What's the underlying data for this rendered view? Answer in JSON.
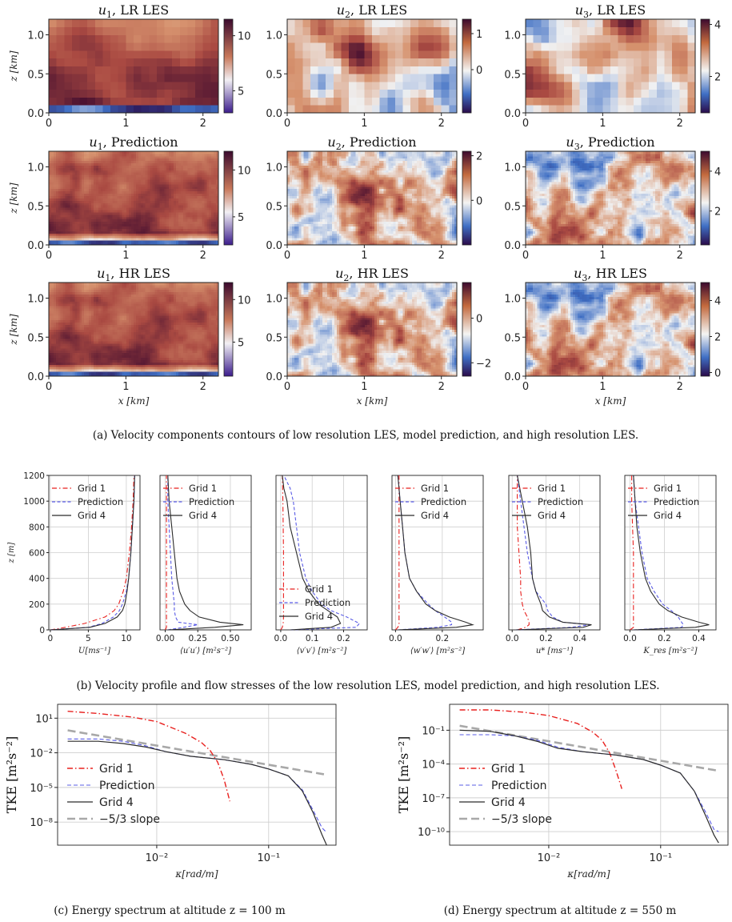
{
  "captions": {
    "a": "(a) Velocity components contours of low resolution LES, model prediction, and high resolution LES.",
    "b": "(b) Velocity profile and flow stresses of the low resolution LES, model prediction, and high resolution LES.",
    "c": "(c) Energy spectrum at altitude z = 100 m",
    "d": "(d) Energy spectrum at altitude z = 550 m"
  },
  "chart_data": [
    {
      "id": "a",
      "type": "heatmap",
      "x_label": "x [km]",
      "z_label": "z [km]",
      "x_ticks": [
        "0",
        "1",
        "2"
      ],
      "z_ticks": [
        "0.0",
        "0.5",
        "1.0"
      ],
      "xlim": [
        0,
        2.2
      ],
      "zlim": [
        0,
        1.2
      ],
      "panels": [
        {
          "title": "u1, LR LES",
          "component": "u1",
          "source": "LR LES",
          "grid": "coarse",
          "colorbar_ticks": [
            "10",
            "5"
          ],
          "colorbar_range": [
            3,
            11.5
          ]
        },
        {
          "title": "u2, LR LES",
          "component": "u2",
          "source": "LR LES",
          "grid": "coarse",
          "colorbar_ticks": [
            "1",
            "0"
          ],
          "colorbar_range": [
            -1.2,
            1.4
          ]
        },
        {
          "title": "u3, LR LES",
          "component": "u3",
          "source": "LR LES",
          "grid": "coarse",
          "colorbar_ticks": [
            "4",
            "2"
          ],
          "colorbar_range": [
            0.6,
            4.2
          ]
        },
        {
          "title": "u1, Prediction",
          "component": "u1",
          "source": "Prediction",
          "grid": "fine",
          "colorbar_ticks": [
            "10",
            "5"
          ],
          "colorbar_range": [
            2,
            12
          ]
        },
        {
          "title": "u2, Prediction",
          "component": "u2",
          "source": "Prediction",
          "grid": "fine",
          "colorbar_ticks": [
            "2",
            "0"
          ],
          "colorbar_range": [
            -2,
            2.2
          ]
        },
        {
          "title": "u3, Prediction",
          "component": "u3",
          "source": "Prediction",
          "grid": "fine",
          "colorbar_ticks": [
            "4",
            "2"
          ],
          "colorbar_range": [
            0.3,
            5
          ]
        },
        {
          "title": "u1, HR LES",
          "component": "u1",
          "source": "HR LES",
          "grid": "fine",
          "colorbar_ticks": [
            "10",
            "5"
          ],
          "colorbar_range": [
            1,
            12
          ]
        },
        {
          "title": "u2, HR LES",
          "component": "u2",
          "source": "HR LES",
          "grid": "fine",
          "colorbar_ticks": [
            "0",
            "−2"
          ],
          "colorbar_range": [
            -2.6,
            1.6
          ]
        },
        {
          "title": "u3, HR LES",
          "component": "u3",
          "source": "HR LES",
          "grid": "fine",
          "colorbar_ticks": [
            "4",
            "2",
            "0"
          ],
          "colorbar_range": [
            -0.2,
            5
          ]
        }
      ]
    },
    {
      "id": "b",
      "type": "line",
      "y_label": "z [m]",
      "y_ticks": [
        0,
        200,
        400,
        600,
        800,
        1000,
        1200
      ],
      "ylim": [
        0,
        1200
      ],
      "series_names": [
        "Grid 1",
        "Prediction",
        "Grid 4"
      ],
      "series_colors": [
        "#e8201e",
        "#5a5ce6",
        "#2b2b2b"
      ],
      "legend_pos": "top-right",
      "panels": [
        {
          "xlabel": "U[ms⁻¹]",
          "xlim": [
            -0.2,
            11.8
          ],
          "x_ticks": [
            0,
            5,
            10
          ],
          "x_tick_labels": [
            "0",
            "5",
            "10"
          ],
          "z": [
            0,
            20,
            50,
            100,
            150,
            200,
            300,
            400,
            600,
            800,
            1000,
            1200
          ],
          "grid1": [
            0,
            2.0,
            4.5,
            7.2,
            8.4,
            9.0,
            9.6,
            10.0,
            10.4,
            10.7,
            10.9,
            11.0
          ],
          "prediction": [
            0,
            5.0,
            6.8,
            8.3,
            9.1,
            9.5,
            10.0,
            10.3,
            10.6,
            10.8,
            11.0,
            11.1
          ],
          "grid4": [
            0,
            5.2,
            7.2,
            8.8,
            9.5,
            9.8,
            10.1,
            10.3,
            10.6,
            10.8,
            11.0,
            11.1
          ]
        },
        {
          "xlabel": "⟨u′u′⟩ [m²s⁻²]",
          "xlim": [
            -0.04,
            0.66
          ],
          "x_ticks": [
            0,
            0.25,
            0.5
          ],
          "x_tick_labels": [
            "0.00",
            "0.25",
            "0.50"
          ],
          "z": [
            0,
            20,
            40,
            60,
            100,
            150,
            200,
            300,
            400,
            600,
            800,
            1000,
            1200
          ],
          "grid1": [
            0.0,
            0.01,
            0.01,
            0.01,
            0.01,
            0.01,
            0.01,
            0.01,
            0.01,
            0.01,
            0.01,
            0.01,
            0.01
          ],
          "prediction": [
            0.02,
            0.14,
            0.25,
            0.1,
            0.08,
            0.07,
            0.07,
            0.06,
            0.05,
            0.04,
            0.03,
            0.02,
            0.02
          ],
          "grid4": [
            0.02,
            0.38,
            0.6,
            0.42,
            0.26,
            0.19,
            0.15,
            0.11,
            0.09,
            0.07,
            0.05,
            0.03,
            0.02
          ]
        },
        {
          "xlabel": "⟨v′v′⟩ [m²s⁻²]",
          "xlim": [
            -0.015,
            0.275
          ],
          "x_ticks": [
            0,
            0.1,
            0.2
          ],
          "x_tick_labels": [
            "0.0",
            "0.1",
            "0.2"
          ],
          "z": [
            0,
            20,
            50,
            100,
            150,
            200,
            300,
            400,
            600,
            800,
            1000,
            1100,
            1200
          ],
          "grid1": [
            0.0,
            0.005,
            0.008,
            0.009,
            0.009,
            0.009,
            0.009,
            0.009,
            0.009,
            0.008,
            0.007,
            0.006,
            0.005
          ],
          "prediction": [
            0.03,
            0.24,
            0.25,
            0.21,
            0.16,
            0.13,
            0.1,
            0.08,
            0.06,
            0.05,
            0.04,
            0.03,
            0.01
          ],
          "grid4": [
            0.03,
            0.16,
            0.19,
            0.18,
            0.15,
            0.12,
            0.09,
            0.07,
            0.05,
            0.03,
            0.02,
            0.01,
            0.005
          ]
        },
        {
          "xlabel": "⟨w′w′⟩ [m²s⁻²]",
          "xlim": [
            -0.015,
            0.375
          ],
          "x_ticks": [
            0,
            0.2
          ],
          "x_tick_labels": [
            "0.0",
            "0.2"
          ],
          "z": [
            0,
            20,
            40,
            60,
            100,
            150,
            200,
            300,
            400,
            600,
            800,
            1000,
            1200
          ],
          "grid1": [
            0.0,
            0.01,
            0.015,
            0.015,
            0.015,
            0.015,
            0.015,
            0.015,
            0.015,
            0.015,
            0.015,
            0.015,
            0.015
          ],
          "prediction": [
            0.01,
            0.18,
            0.24,
            0.24,
            0.21,
            0.17,
            0.14,
            0.09,
            0.06,
            0.04,
            0.03,
            0.02,
            0.01
          ],
          "grid4": [
            0.01,
            0.26,
            0.33,
            0.3,
            0.23,
            0.17,
            0.13,
            0.09,
            0.06,
            0.04,
            0.03,
            0.02,
            0.01
          ]
        },
        {
          "xlabel": "u* [ms⁻¹]",
          "xlim": [
            -0.02,
            0.52
          ],
          "x_ticks": [
            0,
            0.2,
            0.4
          ],
          "x_tick_labels": [
            "0.0",
            "0.2",
            "0.4"
          ],
          "z": [
            0,
            20,
            40,
            60,
            100,
            150,
            200,
            300,
            400,
            600,
            800,
            1000,
            1200
          ],
          "grid1": [
            0.03,
            0.08,
            0.1,
            0.1,
            0.09,
            0.07,
            0.06,
            0.05,
            0.05,
            0.04,
            0.03,
            0.03,
            0.03
          ],
          "prediction": [
            0.02,
            0.35,
            0.46,
            0.3,
            0.24,
            0.21,
            0.2,
            0.14,
            0.12,
            0.09,
            0.07,
            0.05,
            0.03
          ],
          "grid4": [
            0.02,
            0.42,
            0.47,
            0.3,
            0.22,
            0.18,
            0.17,
            0.14,
            0.12,
            0.11,
            0.09,
            0.06,
            0.03
          ]
        },
        {
          "xlabel": "K_res [m²s⁻²]",
          "xlim": [
            -0.03,
            0.5
          ],
          "x_ticks": [
            0,
            0.2,
            0.4
          ],
          "x_tick_labels": [
            "0.0",
            "0.2",
            "0.4"
          ],
          "z": [
            0,
            20,
            40,
            60,
            100,
            150,
            200,
            300,
            400,
            600,
            800,
            1000,
            1200
          ],
          "grid1": [
            0.0,
            0.02,
            0.02,
            0.02,
            0.02,
            0.02,
            0.02,
            0.02,
            0.02,
            0.02,
            0.015,
            0.01,
            0.01
          ],
          "prediction": [
            0.02,
            0.3,
            0.31,
            0.3,
            0.28,
            0.24,
            0.19,
            0.14,
            0.1,
            0.07,
            0.05,
            0.03,
            0.02
          ],
          "grid4": [
            0.02,
            0.38,
            0.46,
            0.4,
            0.3,
            0.22,
            0.17,
            0.12,
            0.09,
            0.06,
            0.04,
            0.03,
            0.02
          ]
        }
      ]
    },
    {
      "id": "c",
      "type": "line",
      "log_x": true,
      "log_y": true,
      "xlabel": "κ[rad/m]",
      "ylabel": "TKE [m²s⁻²]",
      "xlim": [
        0.0013,
        0.4
      ],
      "ylim_log10": [
        -10.0,
        2.2
      ],
      "x_ticks": [
        0.01,
        0.1
      ],
      "x_tick_labels": [
        "10⁻²",
        "10⁻¹"
      ],
      "y_ticks_log10": [
        1,
        -2,
        -5,
        -8
      ],
      "y_tick_labels": [
        "10¹",
        "10⁻²",
        "10⁻⁵",
        "10⁻⁸"
      ],
      "legend_pos": "lower-left",
      "series": [
        {
          "name": "Grid 1",
          "style": "dash-dot",
          "color": "#e8201e",
          "k": [
            0.0016,
            0.003,
            0.006,
            0.01,
            0.018,
            0.025,
            0.03,
            0.035,
            0.04,
            0.045
          ],
          "log10E": [
            1.6,
            1.4,
            1.1,
            0.7,
            -0.3,
            -1.1,
            -1.8,
            -2.8,
            -4.3,
            -6.2
          ]
        },
        {
          "name": "Prediction",
          "style": "dashed",
          "color": "#5a5ce6",
          "k": [
            0.0016,
            0.003,
            0.005,
            0.008,
            0.012,
            0.02,
            0.04,
            0.07,
            0.1,
            0.15,
            0.2,
            0.25,
            0.3,
            0.33
          ],
          "log10E": [
            -0.8,
            -0.8,
            -1.0,
            -1.4,
            -1.9,
            -2.3,
            -2.6,
            -3.0,
            -3.4,
            -4.0,
            -5.2,
            -7.0,
            -8.5,
            -8.9
          ]
        },
        {
          "name": "Grid 4",
          "style": "solid",
          "color": "#2b2b2b",
          "k": [
            0.0016,
            0.003,
            0.005,
            0.008,
            0.012,
            0.02,
            0.04,
            0.07,
            0.1,
            0.15,
            0.2,
            0.25,
            0.3,
            0.33
          ],
          "log10E": [
            -1.0,
            -1.0,
            -1.2,
            -1.5,
            -1.9,
            -2.3,
            -2.6,
            -3.0,
            -3.4,
            -4.0,
            -5.3,
            -7.2,
            -9.1,
            -10.0
          ]
        },
        {
          "name": "−5/3 slope",
          "style": "dashed-thick",
          "color": "#a8a8a8",
          "k": [
            0.0016,
            0.33
          ],
          "log10E": [
            -0.05,
            -3.9
          ]
        }
      ]
    },
    {
      "id": "d",
      "type": "line",
      "log_x": true,
      "log_y": true,
      "xlabel": "κ[rad/m]",
      "ylabel": "TKE [m²s⁻²]",
      "xlim": [
        0.0013,
        0.4
      ],
      "ylim_log10": [
        -11.2,
        1.3
      ],
      "x_ticks": [
        0.01,
        0.1
      ],
      "x_tick_labels": [
        "10⁻²",
        "10⁻¹"
      ],
      "y_ticks_log10": [
        -1,
        -4,
        -7,
        -10
      ],
      "y_tick_labels": [
        "10⁻¹",
        "10⁻⁴",
        "10⁻⁷",
        "10⁻¹⁰"
      ],
      "legend_pos": "lower-left",
      "series": [
        {
          "name": "Grid 1",
          "style": "dash-dot",
          "color": "#e8201e",
          "k": [
            0.0016,
            0.003,
            0.006,
            0.01,
            0.018,
            0.025,
            0.03,
            0.035,
            0.04,
            0.045
          ],
          "log10E": [
            0.8,
            0.8,
            0.6,
            0.3,
            -0.4,
            -1.2,
            -1.9,
            -3.0,
            -4.6,
            -6.2
          ]
        },
        {
          "name": "Prediction",
          "style": "dashed",
          "color": "#5a5ce6",
          "k": [
            0.0016,
            0.003,
            0.005,
            0.008,
            0.012,
            0.02,
            0.04,
            0.07,
            0.1,
            0.15,
            0.2,
            0.25,
            0.3,
            0.33
          ],
          "log10E": [
            -1.4,
            -1.4,
            -1.5,
            -1.9,
            -2.5,
            -2.9,
            -3.2,
            -3.6,
            -4.1,
            -4.8,
            -6.4,
            -8.2,
            -9.8,
            -10.0
          ]
        },
        {
          "name": "Grid 4",
          "style": "solid",
          "color": "#2b2b2b",
          "k": [
            0.0016,
            0.003,
            0.005,
            0.008,
            0.012,
            0.02,
            0.04,
            0.07,
            0.1,
            0.15,
            0.2,
            0.25,
            0.3,
            0.33
          ],
          "log10E": [
            -1.0,
            -1.1,
            -1.5,
            -2.0,
            -2.6,
            -2.9,
            -3.2,
            -3.6,
            -4.1,
            -4.8,
            -6.4,
            -8.5,
            -10.3,
            -11.0
          ]
        },
        {
          "name": "−5/3 slope",
          "style": "dashed-thick",
          "color": "#a8a8a8",
          "k": [
            0.0016,
            0.33
          ],
          "log10E": [
            -0.6,
            -4.6
          ]
        }
      ]
    }
  ]
}
